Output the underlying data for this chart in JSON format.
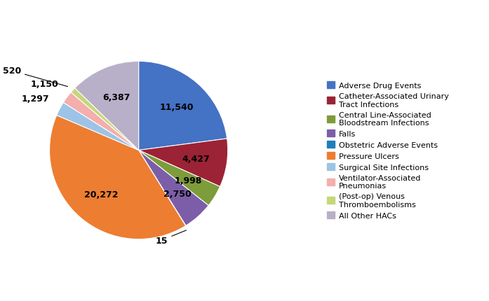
{
  "values": [
    11540,
    4427,
    1998,
    2750,
    15,
    20272,
    1297,
    1150,
    520,
    6387
  ],
  "colors": [
    "#4472C4",
    "#9B2335",
    "#7D9C3A",
    "#7B5EA7",
    "#217DBB",
    "#ED7D31",
    "#9DC3E6",
    "#F4AEAB",
    "#C5D878",
    "#B8B0C8"
  ],
  "autopct_labels": [
    "11,540",
    "4,427",
    "1,998",
    "2,750",
    "15",
    "20,272",
    "1,297",
    "1,150",
    "520",
    "6,387"
  ],
  "legend_labels": [
    "Adverse Drug Events",
    "Catheter-Associated Urinary\nTract Infections",
    "Central Line-Associated\nBloodstream Infections",
    "Falls",
    "Obstetric Adverse Events",
    "Pressure Ulcers",
    "Surgical Site Infections",
    "Ventilator-Associated\nPneumonias",
    "(Post-op) Venous\nThromboembolisms",
    "All Other HACs"
  ],
  "background_color": "#FFFFFF",
  "label_fontsize": 9,
  "legend_fontsize": 8.0
}
